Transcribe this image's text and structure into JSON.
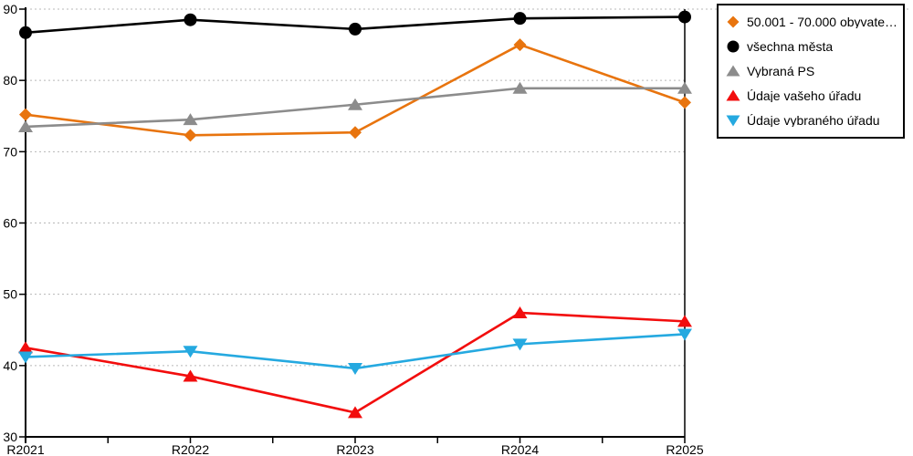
{
  "chart_data": {
    "type": "line",
    "title": "",
    "xlabel": "",
    "ylabel": "",
    "categories": [
      "R2021",
      "R2022",
      "R2023",
      "R2024",
      "R2025"
    ],
    "series": [
      {
        "name": "50.001 - 70.000 obyvatel obc...",
        "marker": "diamond",
        "color": "#e8740e",
        "values": [
          75.2,
          72.3,
          72.7,
          85.0,
          76.9
        ]
      },
      {
        "name": "všechna města",
        "marker": "circle",
        "color": "#000000",
        "values": [
          86.7,
          88.5,
          87.2,
          88.7,
          88.9
        ]
      },
      {
        "name": "Vybraná PS",
        "marker": "triangle-up",
        "color": "#8c8c8c",
        "values": [
          73.5,
          74.5,
          76.6,
          78.9,
          78.9
        ]
      },
      {
        "name": "Údaje vašeho úřadu",
        "marker": "triangle-up",
        "color": "#f20d0d",
        "values": [
          42.5,
          38.5,
          33.4,
          47.4,
          46.2
        ]
      },
      {
        "name": "Údaje vybraného úřadu",
        "marker": "triangle-down",
        "color": "#25a9e0",
        "values": [
          41.2,
          42.0,
          39.6,
          43.0,
          44.4
        ]
      }
    ],
    "ylim": [
      30,
      90
    ],
    "yticks": [
      30,
      40,
      50,
      60,
      70,
      80,
      90
    ],
    "grid": "horizontal-dotted",
    "gridline_color": "#b8b8b8",
    "axis_color": "#000000",
    "legend_position": "top-right"
  }
}
